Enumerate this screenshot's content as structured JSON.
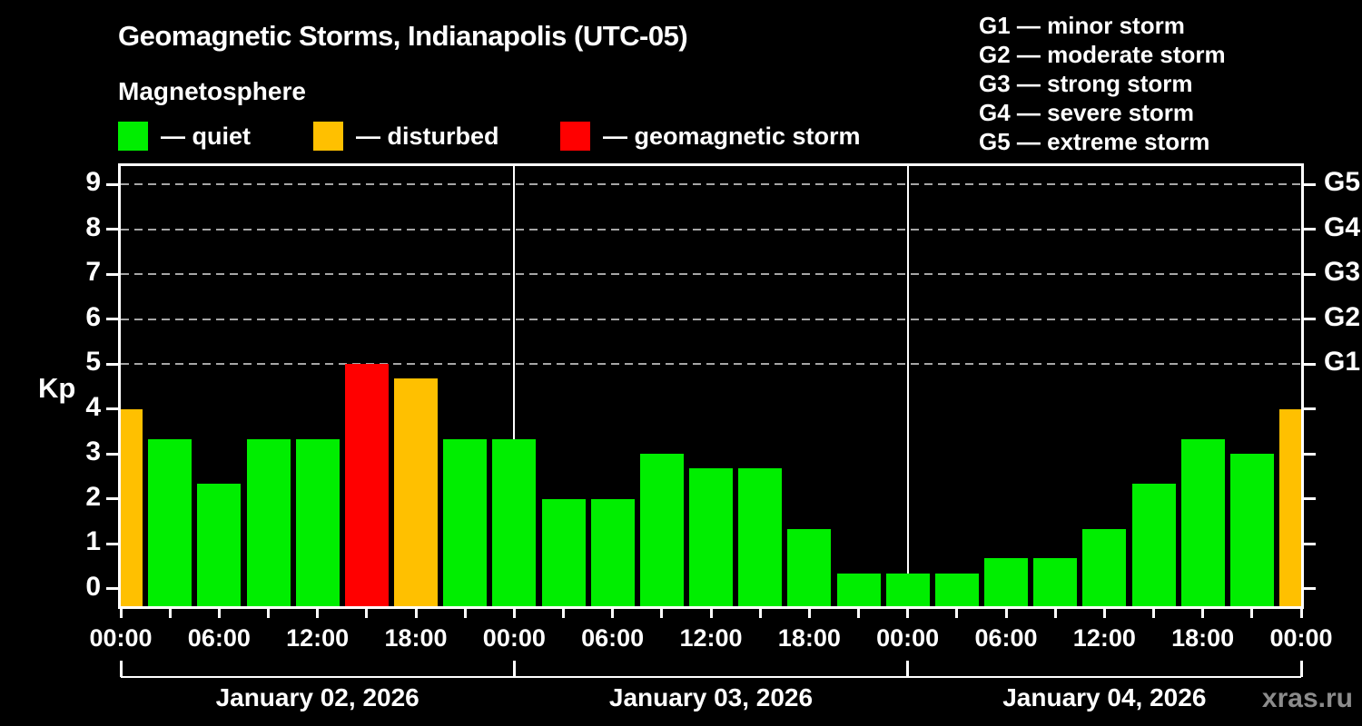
{
  "title": "Geomagnetic Storms, Indianapolis (UTC-05)",
  "subtitle": "Magnetosphere",
  "legend": {
    "items": [
      {
        "key": "quiet",
        "label": "— quiet",
        "color": "#00ee00",
        "x": 0
      },
      {
        "key": "disturbed",
        "label": "— disturbed",
        "color": "#ffc000",
        "x": 215
      },
      {
        "key": "storm",
        "label": "— geomagnetic storm",
        "color": "#ff0000",
        "x": 487
      }
    ]
  },
  "g_scale_legend": [
    "G1 — minor storm",
    "G2 — moderate storm",
    "G3 — strong storm",
    "G4 — severe storm",
    "G5 — extreme storm"
  ],
  "watermark": "xras.ru",
  "chart_data": {
    "type": "bar",
    "title": "Geomagnetic Storms, Indianapolis (UTC-05)",
    "subtitle": "Magnetosphere",
    "ylabel": "Kp",
    "ylim": [
      -0.4,
      9.4
    ],
    "grid": "dashed horizontal lines at Kp 5..9 only",
    "y_ticks": [
      0,
      1,
      2,
      3,
      4,
      5,
      6,
      7,
      8,
      9
    ],
    "right_axis_labels": [
      {
        "kp": 5,
        "label": "G1"
      },
      {
        "kp": 6,
        "label": "G2"
      },
      {
        "kp": 7,
        "label": "G3"
      },
      {
        "kp": 8,
        "label": "G4"
      },
      {
        "kp": 9,
        "label": "G5"
      }
    ],
    "x_major_tick_labels": [
      "00:00",
      "06:00",
      "12:00",
      "18:00",
      "00:00",
      "06:00",
      "12:00",
      "18:00",
      "00:00",
      "06:00",
      "12:00",
      "18:00",
      "00:00"
    ],
    "x_minor_tick_every_hours": 3,
    "days": [
      {
        "label": "January 02, 2026"
      },
      {
        "label": "January 03, 2026"
      },
      {
        "label": "January 04, 2026"
      }
    ],
    "series_note": "one bar per 3-hour Kp interval; bars centered on the 3-hour marks starting January 02, 2026 00:00 (UTC-05); first and last bars are half-clipped at the plot edges",
    "step_hours": 3,
    "bars": [
      {
        "hour_offset": 0,
        "kp": 4.0,
        "status": "disturbed"
      },
      {
        "hour_offset": 3,
        "kp": 3.33,
        "status": "quiet"
      },
      {
        "hour_offset": 6,
        "kp": 2.33,
        "status": "quiet"
      },
      {
        "hour_offset": 9,
        "kp": 3.33,
        "status": "quiet"
      },
      {
        "hour_offset": 12,
        "kp": 3.33,
        "status": "quiet"
      },
      {
        "hour_offset": 15,
        "kp": 5.0,
        "status": "storm"
      },
      {
        "hour_offset": 18,
        "kp": 4.67,
        "status": "disturbed"
      },
      {
        "hour_offset": 21,
        "kp": 3.33,
        "status": "quiet"
      },
      {
        "hour_offset": 24,
        "kp": 3.33,
        "status": "quiet"
      },
      {
        "hour_offset": 27,
        "kp": 2.0,
        "status": "quiet"
      },
      {
        "hour_offset": 30,
        "kp": 2.0,
        "status": "quiet"
      },
      {
        "hour_offset": 33,
        "kp": 3.0,
        "status": "quiet"
      },
      {
        "hour_offset": 36,
        "kp": 2.67,
        "status": "quiet"
      },
      {
        "hour_offset": 39,
        "kp": 2.67,
        "status": "quiet"
      },
      {
        "hour_offset": 42,
        "kp": 1.33,
        "status": "quiet"
      },
      {
        "hour_offset": 45,
        "kp": 0.33,
        "status": "quiet"
      },
      {
        "hour_offset": 48,
        "kp": 0.33,
        "status": "quiet"
      },
      {
        "hour_offset": 51,
        "kp": 0.33,
        "status": "quiet"
      },
      {
        "hour_offset": 54,
        "kp": 0.67,
        "status": "quiet"
      },
      {
        "hour_offset": 57,
        "kp": 0.67,
        "status": "quiet"
      },
      {
        "hour_offset": 60,
        "kp": 1.33,
        "status": "quiet"
      },
      {
        "hour_offset": 63,
        "kp": 2.33,
        "status": "quiet"
      },
      {
        "hour_offset": 66,
        "kp": 3.33,
        "status": "quiet"
      },
      {
        "hour_offset": 69,
        "kp": 3.0,
        "status": "quiet"
      },
      {
        "hour_offset": 72,
        "kp": 4.0,
        "status": "disturbed"
      }
    ],
    "status_colors": {
      "quiet": "#00ee00",
      "disturbed": "#ffc000",
      "storm": "#ff0000"
    },
    "legend_position": "top-left row (quiet / disturbed / geomagnetic storm) and top-right G1–G5 list"
  }
}
